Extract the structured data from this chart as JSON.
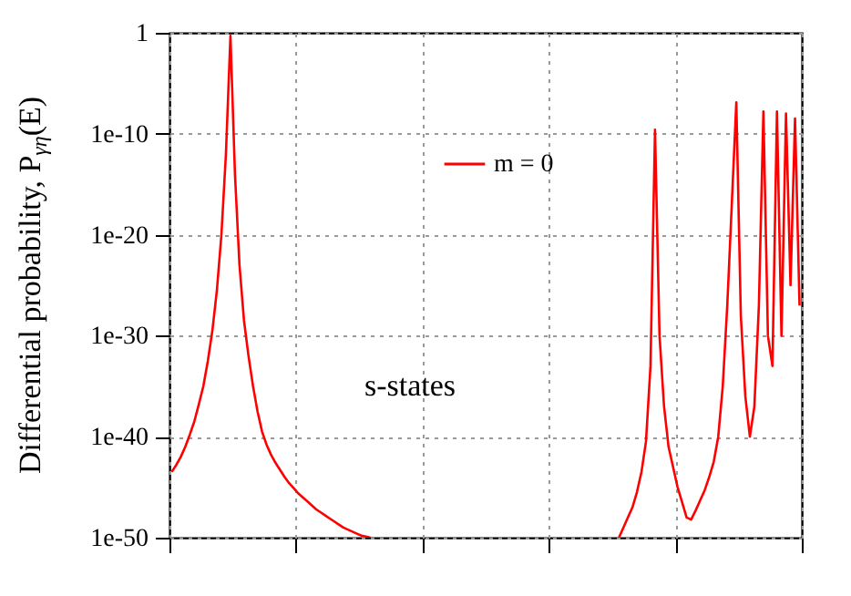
{
  "chart_data": {
    "type": "line",
    "ylabel": "Differential probability, P$_{γη}$(E)",
    "annotations": [
      "s-states"
    ],
    "log": "y",
    "grid": true,
    "legend": "top",
    "tick_labels": "y",
    "ylim": [
      1e-50,
      1
    ],
    "yticks": [
      {
        "value": 1e-50,
        "label": "1e-50"
      },
      {
        "value": 1e-40,
        "label": "1e-40"
      },
      {
        "value": 1e-30,
        "label": "1e-30"
      },
      {
        "value": 1e-20,
        "label": "1e-20"
      },
      {
        "value": 1e-10,
        "label": "1e-10"
      },
      1
    ],
    "categories": [
      null,
      null,
      null,
      null,
      null,
      null,
      null,
      null,
      null,
      null,
      null,
      null,
      null,
      null,
      null,
      null,
      null,
      null,
      null,
      null,
      null,
      null,
      null,
      null,
      null,
      null,
      null,
      null,
      null,
      null,
      null,
      null,
      null,
      null,
      null,
      null,
      null,
      null,
      null,
      null,
      null,
      null,
      null,
      null,
      null,
      null,
      null,
      null,
      null,
      null,
      null,
      null,
      null,
      null,
      null,
      null,
      null,
      null,
      null,
      null,
      null,
      null,
      null,
      null,
      null,
      null,
      null,
      null,
      null,
      null,
      null,
      null,
      null,
      null,
      null,
      null,
      null,
      null,
      null,
      null,
      null,
      null,
      null,
      null,
      null,
      null,
      null,
      null,
      null,
      null,
      null,
      null,
      null,
      null,
      null,
      null,
      null,
      null,
      null,
      null,
      null,
      null,
      null,
      null,
      null,
      null,
      null,
      null,
      null,
      null,
      null,
      null,
      null,
      null,
      null,
      null,
      null,
      null,
      null,
      null,
      null,
      null,
      null,
      null,
      null,
      null,
      null,
      null,
      null,
      null,
      null,
      null,
      null,
      null,
      null,
      null,
      null,
      null,
      null,
      null
    ],
    "series": [
      {
        "name": "m =  0",
        "color": "#ff0000",
        "values": [
          3.2e-44,
          1.6e-43,
          1e-42,
          1e-41,
          1.6e-40,
          3.2e-39,
          1.6e-37,
          1e-35,
          3.2e-33,
          3.2e-30,
          3.2e-26,
          1e-20,
          1e-12,
          0.5,
          1e-14,
          1e-23,
          3.2e-29,
          1e-32,
          1e-35,
          3.2e-38,
          3.2e-40,
          1.6e-41,
          1.6e-42,
          2.5e-43,
          5e-44,
          1e-44,
          2.5e-45,
          7.9e-46,
          2.5e-46,
          1e-46,
          4e-47,
          1.6e-47,
          6.3e-48,
          3.2e-48,
          1.6e-48,
          7.9e-49,
          4e-49,
          2e-49,
          1e-49,
          6.3e-50,
          4e-50,
          2.5e-50,
          1.6e-50,
          1.3e-50,
          1e-50,
          null,
          null,
          null,
          null,
          null,
          null,
          null,
          null,
          null,
          null,
          null,
          null,
          null,
          null,
          null,
          null,
          null,
          null,
          null,
          null,
          null,
          null,
          null,
          null,
          null,
          null,
          null,
          null,
          null,
          null,
          null,
          null,
          null,
          null,
          null,
          null,
          null,
          null,
          null,
          null,
          null,
          null,
          null,
          null,
          null,
          null,
          null,
          null,
          null,
          null,
          null,
          null,
          null,
          null,
          1e-50,
          1e-49,
          1e-48,
          1e-47,
          3.2e-46,
          3.2e-44,
          3.2e-41,
          1e-33,
          2.5e-10,
          1e-30,
          1e-37,
          1e-41,
          1e-43,
          1e-45,
          3.2e-47,
          1e-48,
          6.3e-49,
          5e-48,
          5e-47,
          5e-46,
          1e-44,
          3.2e-43,
          1e-40,
          1e-35,
          1e-27,
          1e-17,
          1.3e-07,
          1e-28,
          1e-36,
          1e-40,
          1e-37,
          1e-27,
          1.6e-08,
          1e-30,
          1e-33,
          1.6e-08,
          1e-30,
          1e-08,
          1e-25,
          3.2e-09,
          1e-27
        ]
      }
    ]
  }
}
